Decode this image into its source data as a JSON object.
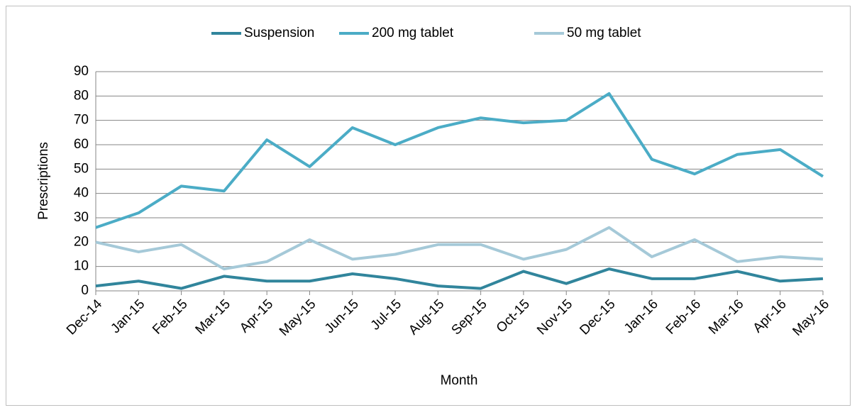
{
  "chart_data": {
    "type": "line",
    "x_label": "Month",
    "y_label": "Prescriptions",
    "categories": [
      "Dec-14",
      "Jan-15",
      "Feb-15",
      "Mar-15",
      "Apr-15",
      "May-15",
      "Jun-15",
      "Jul-15",
      "Aug-15",
      "Sep-15",
      "Oct-15",
      "Nov-15",
      "Dec-15",
      "Jan-16",
      "Feb-16",
      "Mar-16",
      "Apr-16",
      "May-16"
    ],
    "series": [
      {
        "name": "Suspension",
        "color": "#31859c",
        "values": [
          2,
          4,
          1,
          6,
          4,
          4,
          7,
          5,
          2,
          1,
          8,
          3,
          9,
          5,
          5,
          8,
          4,
          5
        ]
      },
      {
        "name": "200 mg tablet",
        "color": "#4bacc6",
        "values": [
          26,
          32,
          43,
          41,
          62,
          51,
          67,
          60,
          67,
          71,
          69,
          70,
          81,
          54,
          48,
          56,
          58,
          47
        ]
      },
      {
        "name": "50 mg tablet",
        "color": "#a5c9d8",
        "values": [
          20,
          16,
          19,
          9,
          12,
          21,
          13,
          15,
          19,
          19,
          13,
          17,
          26,
          14,
          21,
          12,
          14,
          13
        ]
      }
    ],
    "ylim": [
      0,
      90
    ],
    "yticks": [
      0,
      10,
      20,
      30,
      40,
      50,
      60,
      70,
      80,
      90
    ],
    "grid": true,
    "legend": "top"
  }
}
